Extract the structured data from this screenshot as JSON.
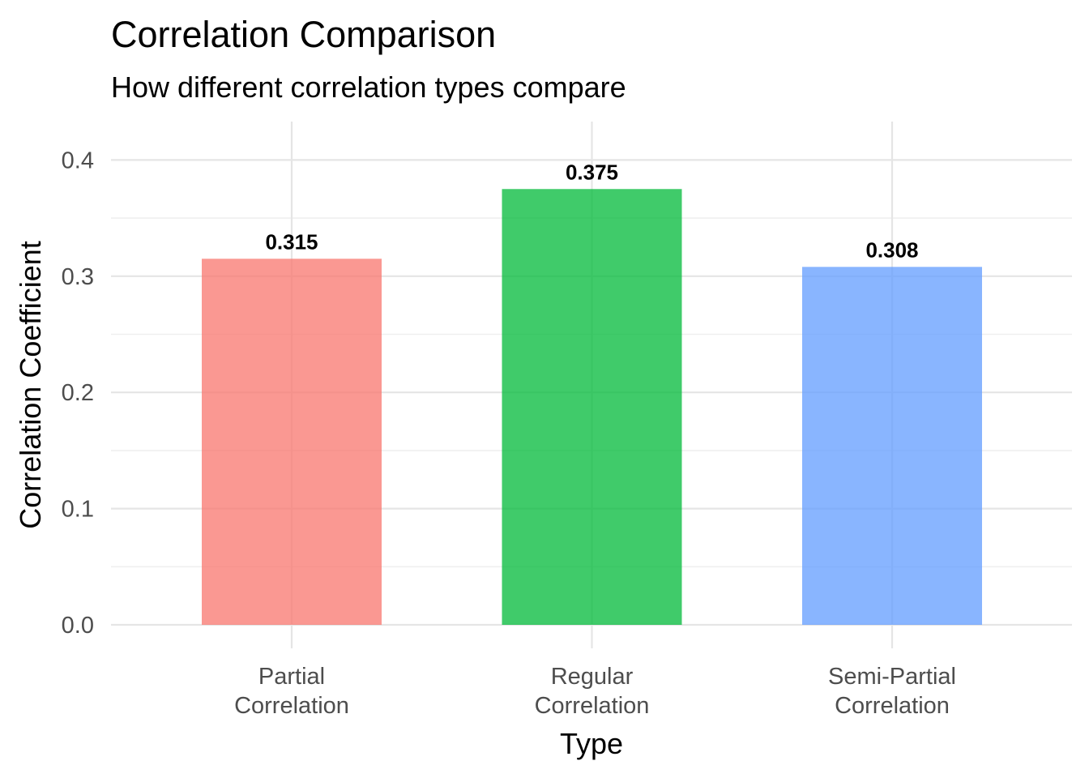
{
  "chart_data": {
    "type": "bar",
    "title": "Correlation Comparison",
    "subtitle": "How different correlation types compare",
    "xlabel": "Type",
    "ylabel": "Correlation Coefficient",
    "categories": [
      [
        "Partial",
        "Correlation"
      ],
      [
        "Regular",
        "Correlation"
      ],
      [
        "Semi-Partial",
        "Correlation"
      ]
    ],
    "values": [
      0.315,
      0.375,
      0.308
    ],
    "value_labels": [
      "0.315",
      "0.375",
      "0.308"
    ],
    "colors": [
      "#F8766D",
      "#00BA38",
      "#619CFF"
    ],
    "bar_opacity": 0.75,
    "ylim": [
      0,
      0.43
    ],
    "yticks": [
      0.0,
      0.1,
      0.2,
      0.3,
      0.4
    ],
    "ytick_labels": [
      "0.0",
      "0.1",
      "0.2",
      "0.3",
      "0.4"
    ],
    "grid": true,
    "legend": "none"
  }
}
